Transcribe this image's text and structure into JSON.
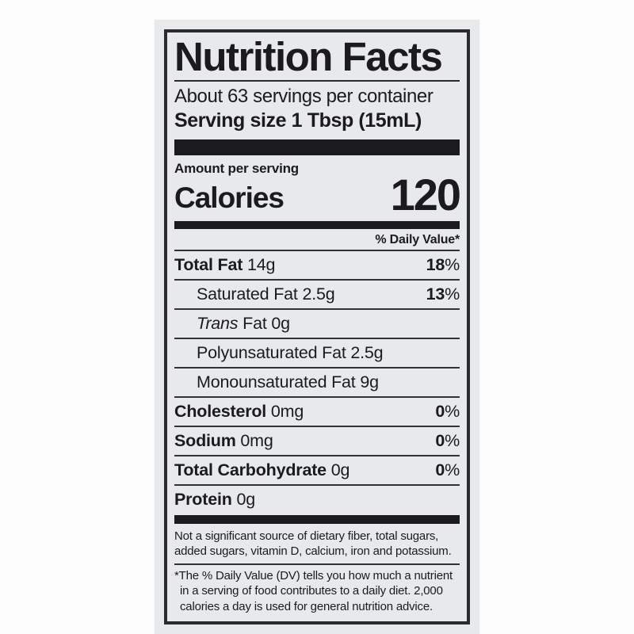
{
  "colors": {
    "page_background": "#fdfdfd",
    "label_background": "#e7e9eb",
    "ink": "#1b1b1d"
  },
  "label": {
    "title": "Nutrition Facts",
    "servings_per_container": "About 63 servings per container",
    "serving_size_label": "Serving size",
    "serving_size_value": "1 Tbsp (15mL)",
    "amount_per_serving": "Amount per serving",
    "calories_label": "Calories",
    "calories_value": "120",
    "daily_value_header": "% Daily Value*",
    "percent_sign": "%",
    "rows": [
      {
        "bold_text": "Total Fat",
        "text": " 14g",
        "dv": "18"
      },
      {
        "text": "Saturated Fat 2.5g",
        "dv": "13"
      },
      {
        "italic_text": "Trans",
        "text": " Fat 0g"
      },
      {
        "text": "Polyunsaturated Fat 2.5g"
      },
      {
        "text": "Monounsaturated Fat 9g"
      },
      {
        "bold_text": "Cholesterol",
        "text": " 0mg",
        "dv": "0"
      },
      {
        "bold_text": "Sodium",
        "text": " 0mg",
        "dv": "0"
      },
      {
        "bold_text": "Total Carbohydrate",
        "text": " 0g",
        "dv": "0"
      },
      {
        "bold_text": "Protein",
        "text": " 0g"
      }
    ],
    "footnote1": "Not a significant source of dietary fiber, total sugars,\nadded sugars, vitamin D, calcium, iron and potassium.",
    "footnote2_marker": "*",
    "footnote2": "The % Daily Value (DV) tells you how much a nutrient\nin a serving of food contributes to a daily diet. 2,000\ncalories a day is used for general nutrition advice."
  }
}
